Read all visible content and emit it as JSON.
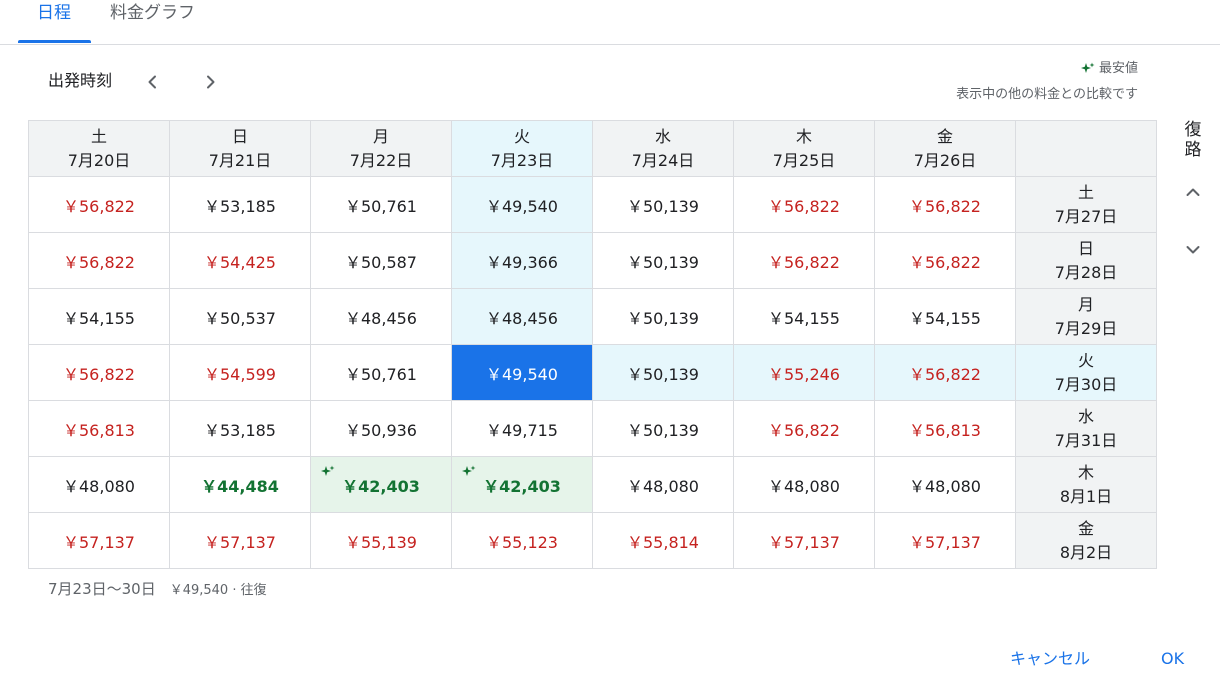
{
  "tabs": [
    {
      "label": "日程",
      "active": true
    },
    {
      "label": "料金グラフ",
      "active": false
    }
  ],
  "departure_label": "出発時刻",
  "lowest_note": {
    "title": "最安値",
    "subtitle": "表示中の他の料金との比較です"
  },
  "return_label": "復路",
  "columns": [
    {
      "dow": "土",
      "date": "7月20日"
    },
    {
      "dow": "日",
      "date": "7月21日"
    },
    {
      "dow": "月",
      "date": "7月22日"
    },
    {
      "dow": "火",
      "date": "7月23日"
    },
    {
      "dow": "水",
      "date": "7月24日"
    },
    {
      "dow": "木",
      "date": "7月25日"
    },
    {
      "dow": "金",
      "date": "7月26日"
    }
  ],
  "rows": [
    {
      "dow": "土",
      "date": "7月27日",
      "fares": [
        {
          "price": "￥56,822",
          "tone": "red"
        },
        {
          "price": "￥53,185",
          "tone": "black"
        },
        {
          "price": "￥50,761",
          "tone": "black"
        },
        {
          "price": "￥49,540",
          "tone": "black"
        },
        {
          "price": "￥50,139",
          "tone": "black"
        },
        {
          "price": "￥56,822",
          "tone": "red"
        },
        {
          "price": "￥56,822",
          "tone": "red"
        }
      ]
    },
    {
      "dow": "日",
      "date": "7月28日",
      "fares": [
        {
          "price": "￥56,822",
          "tone": "red"
        },
        {
          "price": "￥54,425",
          "tone": "red"
        },
        {
          "price": "￥50,587",
          "tone": "black"
        },
        {
          "price": "￥49,366",
          "tone": "black"
        },
        {
          "price": "￥50,139",
          "tone": "black"
        },
        {
          "price": "￥56,822",
          "tone": "red"
        },
        {
          "price": "￥56,822",
          "tone": "red"
        }
      ]
    },
    {
      "dow": "月",
      "date": "7月29日",
      "fares": [
        {
          "price": "￥54,155",
          "tone": "black"
        },
        {
          "price": "￥50,537",
          "tone": "black"
        },
        {
          "price": "￥48,456",
          "tone": "black"
        },
        {
          "price": "￥48,456",
          "tone": "black"
        },
        {
          "price": "￥50,139",
          "tone": "black"
        },
        {
          "price": "￥54,155",
          "tone": "black"
        },
        {
          "price": "￥54,155",
          "tone": "black"
        }
      ]
    },
    {
      "dow": "火",
      "date": "7月30日",
      "fares": [
        {
          "price": "￥56,822",
          "tone": "red"
        },
        {
          "price": "￥54,599",
          "tone": "red"
        },
        {
          "price": "￥50,761",
          "tone": "black"
        },
        {
          "price": "￥49,540",
          "tone": "selected"
        },
        {
          "price": "￥50,139",
          "tone": "black"
        },
        {
          "price": "￥55,246",
          "tone": "red"
        },
        {
          "price": "￥56,822",
          "tone": "red"
        }
      ]
    },
    {
      "dow": "水",
      "date": "7月31日",
      "fares": [
        {
          "price": "￥56,813",
          "tone": "red"
        },
        {
          "price": "￥53,185",
          "tone": "black"
        },
        {
          "price": "￥50,936",
          "tone": "black"
        },
        {
          "price": "￥49,715",
          "tone": "black"
        },
        {
          "price": "￥50,139",
          "tone": "black"
        },
        {
          "price": "￥56,822",
          "tone": "red"
        },
        {
          "price": "￥56,813",
          "tone": "red"
        }
      ]
    },
    {
      "dow": "木",
      "date": "8月1日",
      "fares": [
        {
          "price": "￥48,080",
          "tone": "black"
        },
        {
          "price": "￥44,484",
          "tone": "green"
        },
        {
          "price": "￥42,403",
          "tone": "green",
          "lowest": true
        },
        {
          "price": "￥42,403",
          "tone": "green",
          "lowest": true
        },
        {
          "price": "￥48,080",
          "tone": "black"
        },
        {
          "price": "￥48,080",
          "tone": "black"
        },
        {
          "price": "￥48,080",
          "tone": "black"
        }
      ]
    },
    {
      "dow": "金",
      "date": "8月2日",
      "fares": [
        {
          "price": "￥57,137",
          "tone": "red"
        },
        {
          "price": "￥57,137",
          "tone": "red"
        },
        {
          "price": "￥55,139",
          "tone": "red"
        },
        {
          "price": "￥55,123",
          "tone": "red"
        },
        {
          "price": "￥55,814",
          "tone": "red"
        },
        {
          "price": "￥57,137",
          "tone": "red"
        },
        {
          "price": "￥57,137",
          "tone": "red"
        }
      ]
    }
  ],
  "selected": {
    "col": 3,
    "row": 3
  },
  "summary": {
    "dates": "7月23日〜30日",
    "price": "￥49,540 · 往復"
  },
  "buttons": {
    "cancel": "キャンセル",
    "ok": "OK"
  },
  "colors": {
    "accent": "#1a73e8",
    "expensive": "#c5221f",
    "cheap": "#137333",
    "highlight": "#e6f7fc",
    "cheap_bg": "#e6f4ea"
  },
  "icons": [
    "chevron-left-icon",
    "chevron-right-icon",
    "sparkle-icon",
    "chevron-up-icon",
    "chevron-down-icon"
  ]
}
